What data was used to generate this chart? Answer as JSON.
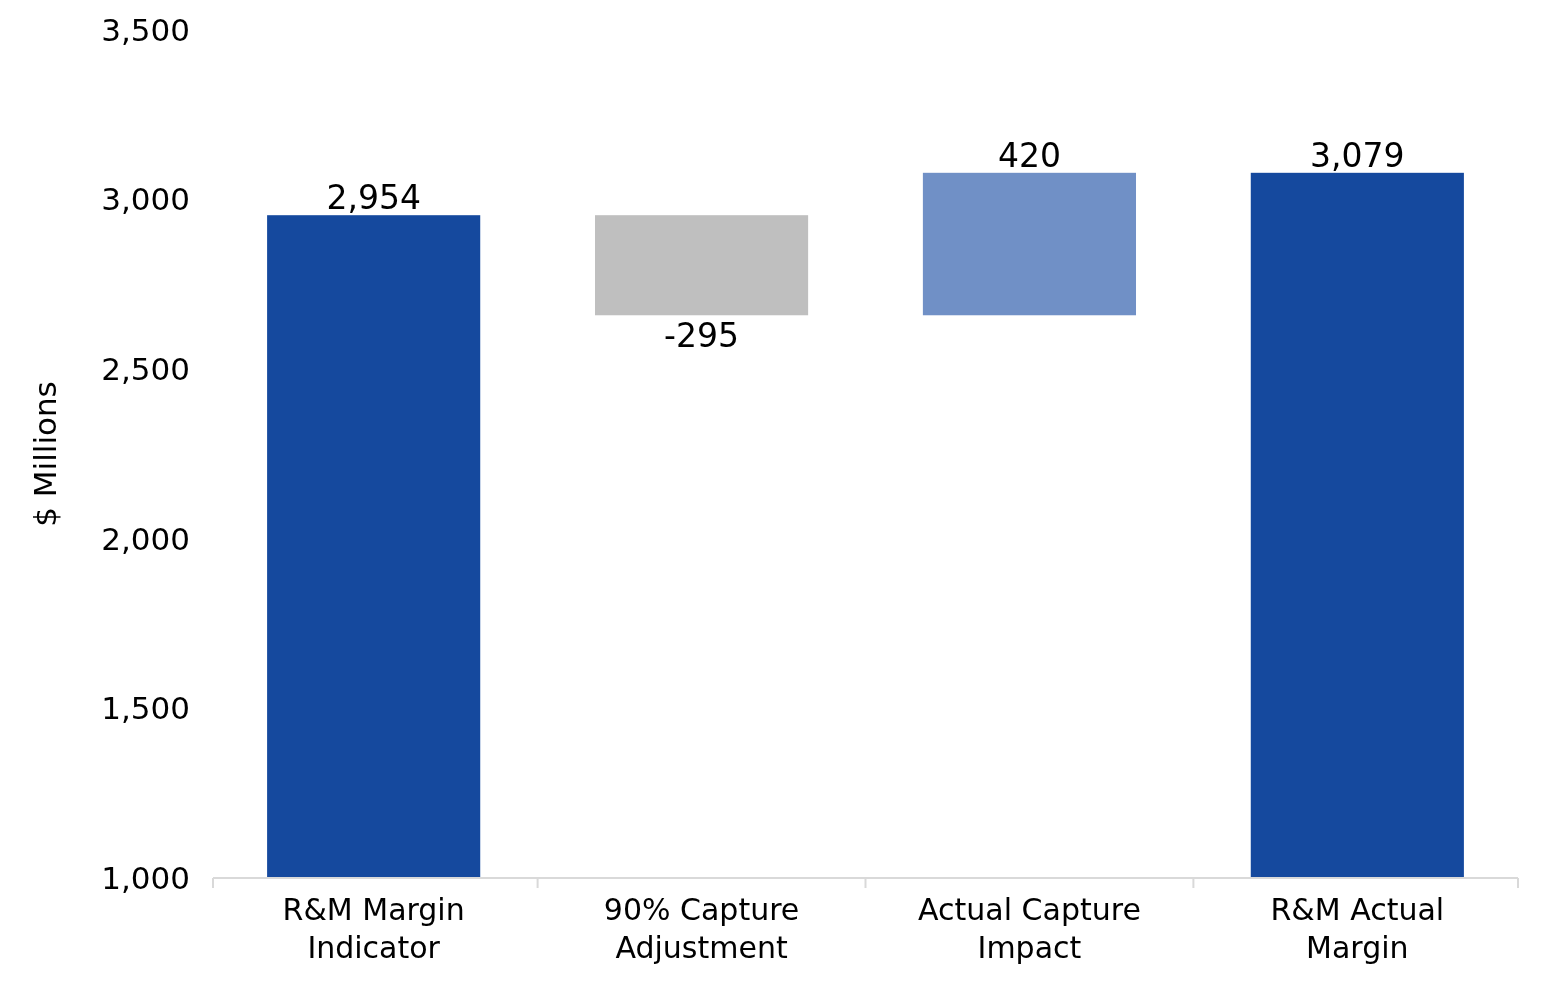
{
  "chart_data": {
    "type": "bar",
    "ylabel": "$ Millions",
    "categories": [
      "R&M Margin Indicator",
      "90% Capture Adjustment",
      "Actual Capture Impact",
      "R&M Actual Margin"
    ],
    "base": [
      1000,
      2954,
      2659,
      1000
    ],
    "values": [
      1954,
      -295,
      420,
      2079
    ],
    "value_labels": [
      "2,954",
      "-295",
      "420",
      "3,079"
    ],
    "colors": [
      "#15499e",
      "#bfbfbf",
      "#7090c6",
      "#15499e"
    ],
    "ylim": [
      1000,
      3500
    ],
    "yticks": [
      {
        "value": 1000,
        "label": "1,000"
      },
      {
        "value": 1500,
        "label": "1,500"
      },
      {
        "value": 2000,
        "label": "2,000"
      },
      {
        "value": 2500,
        "label": "2,500"
      },
      {
        "value": 3000,
        "label": "3,000"
      },
      {
        "value": 3500,
        "label": "3,500"
      }
    ],
    "grid": false
  }
}
